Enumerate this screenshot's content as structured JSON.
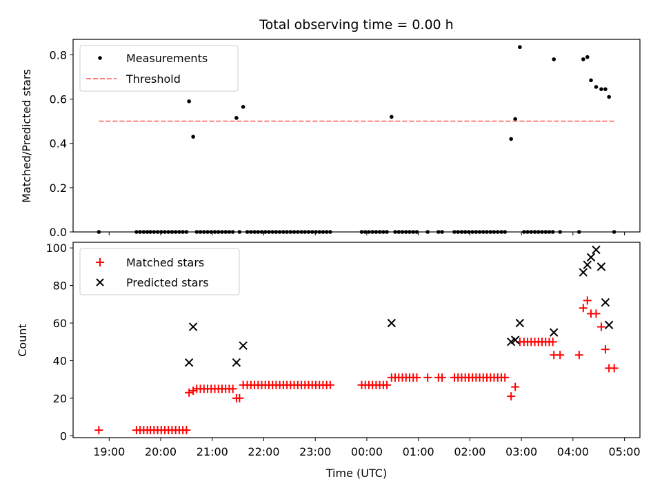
{
  "chart_data": [
    {
      "type": "scatter",
      "title": "Total observing time = 0.00 h",
      "ylabel": "Matched/Predicted stars",
      "xlabel": "",
      "ylim": [
        0,
        0.87
      ],
      "yticks": [
        0.0,
        0.2,
        0.4,
        0.6,
        0.8
      ],
      "ytick_labels": [
        "0.0",
        "0.2",
        "0.4",
        "0.6",
        "0.8"
      ],
      "xaxis_unit": "hours since 00:00 UTC",
      "xlim": [
        -5.7,
        5.3
      ],
      "legend_position": "top-left",
      "series": [
        {
          "name": "Measurements",
          "style": "dot",
          "color": "#000000",
          "points": [
            [
              -5.2,
              0
            ],
            [
              -4.47,
              0
            ],
            [
              -4.4,
              0
            ],
            [
              -4.33,
              0
            ],
            [
              -4.26,
              0
            ],
            [
              -4.2,
              0
            ],
            [
              -4.13,
              0
            ],
            [
              -4.06,
              0
            ],
            [
              -3.99,
              0
            ],
            [
              -3.92,
              0
            ],
            [
              -3.85,
              0
            ],
            [
              -3.78,
              0
            ],
            [
              -3.71,
              0
            ],
            [
              -3.64,
              0
            ],
            [
              -3.57,
              0
            ],
            [
              -3.5,
              0
            ],
            [
              -3.45,
              0.59
            ],
            [
              -3.37,
              0.43
            ],
            [
              -3.3,
              0
            ],
            [
              -3.23,
              0
            ],
            [
              -3.16,
              0
            ],
            [
              -3.09,
              0
            ],
            [
              -3.02,
              0
            ],
            [
              -2.95,
              0
            ],
            [
              -2.88,
              0
            ],
            [
              -2.81,
              0
            ],
            [
              -2.74,
              0
            ],
            [
              -2.67,
              0
            ],
            [
              -2.6,
              0
            ],
            [
              -2.53,
              0.515
            ],
            [
              -2.47,
              0
            ],
            [
              -2.4,
              0.565
            ],
            [
              -2.32,
              0
            ],
            [
              -2.25,
              0
            ],
            [
              -2.18,
              0
            ],
            [
              -2.11,
              0
            ],
            [
              -2.04,
              0
            ],
            [
              -1.97,
              0
            ],
            [
              -1.9,
              0
            ],
            [
              -1.83,
              0
            ],
            [
              -1.76,
              0
            ],
            [
              -1.69,
              0
            ],
            [
              -1.62,
              0
            ],
            [
              -1.55,
              0
            ],
            [
              -1.48,
              0
            ],
            [
              -1.41,
              0
            ],
            [
              -1.34,
              0
            ],
            [
              -1.27,
              0
            ],
            [
              -1.2,
              0
            ],
            [
              -1.13,
              0
            ],
            [
              -1.06,
              0
            ],
            [
              -0.99,
              0
            ],
            [
              -0.92,
              0
            ],
            [
              -0.85,
              0
            ],
            [
              -0.78,
              0
            ],
            [
              -0.71,
              0
            ],
            [
              -0.1,
              0
            ],
            [
              -0.03,
              0
            ],
            [
              0.04,
              0
            ],
            [
              0.11,
              0
            ],
            [
              0.18,
              0
            ],
            [
              0.25,
              0
            ],
            [
              0.32,
              0
            ],
            [
              0.39,
              0
            ],
            [
              0.48,
              0.52
            ],
            [
              0.55,
              0
            ],
            [
              0.62,
              0
            ],
            [
              0.69,
              0
            ],
            [
              0.76,
              0
            ],
            [
              0.83,
              0
            ],
            [
              0.9,
              0
            ],
            [
              0.97,
              0
            ],
            [
              1.18,
              0
            ],
            [
              1.39,
              0
            ],
            [
              1.46,
              0
            ],
            [
              1.7,
              0
            ],
            [
              1.77,
              0
            ],
            [
              1.84,
              0
            ],
            [
              1.91,
              0
            ],
            [
              1.98,
              0
            ],
            [
              2.05,
              0
            ],
            [
              2.12,
              0
            ],
            [
              2.19,
              0
            ],
            [
              2.26,
              0
            ],
            [
              2.33,
              0
            ],
            [
              2.4,
              0
            ],
            [
              2.47,
              0
            ],
            [
              2.54,
              0
            ],
            [
              2.61,
              0
            ],
            [
              2.68,
              0
            ],
            [
              2.8,
              0.42
            ],
            [
              2.88,
              0.51
            ],
            [
              2.97,
              0.835
            ],
            [
              3.05,
              0
            ],
            [
              3.12,
              0
            ],
            [
              3.19,
              0
            ],
            [
              3.26,
              0
            ],
            [
              3.33,
              0
            ],
            [
              3.4,
              0
            ],
            [
              3.47,
              0
            ],
            [
              3.54,
              0
            ],
            [
              3.61,
              0
            ],
            [
              3.63,
              0.78
            ],
            [
              3.75,
              0
            ],
            [
              4.12,
              0
            ],
            [
              4.2,
              0.78
            ],
            [
              4.28,
              0.79
            ],
            [
              4.35,
              0.685
            ],
            [
              4.45,
              0.655
            ],
            [
              4.55,
              0.645
            ],
            [
              4.63,
              0.645
            ],
            [
              4.7,
              0.61
            ],
            [
              4.8,
              0
            ]
          ]
        },
        {
          "name": "Threshold",
          "style": "dashed-line",
          "color": "#ff7f7f",
          "points": [
            [
              -5.2,
              0.5
            ],
            [
              4.8,
              0.5
            ]
          ]
        }
      ]
    },
    {
      "type": "scatter",
      "title": "",
      "ylabel": "Count",
      "xlabel": "Time (UTC)",
      "ylim": [
        -1,
        103
      ],
      "yticks": [
        0,
        20,
        40,
        60,
        80,
        100
      ],
      "ytick_labels": [
        "0",
        "20",
        "40",
        "60",
        "80",
        "100"
      ],
      "xaxis_unit": "hours since 00:00 UTC",
      "xlim": [
        -5.7,
        5.3
      ],
      "xticks": [
        -5,
        -4,
        -3,
        -2,
        -1,
        0,
        1,
        2,
        3,
        4,
        5
      ],
      "xtick_labels": [
        "19:00",
        "20:00",
        "21:00",
        "22:00",
        "23:00",
        "00:00",
        "01:00",
        "02:00",
        "03:00",
        "04:00",
        "05:00"
      ],
      "legend_position": "top-left",
      "series": [
        {
          "name": "Matched stars",
          "style": "plus",
          "color": "#ff0000",
          "points": [
            [
              -5.2,
              3
            ],
            [
              -4.47,
              3
            ],
            [
              -4.4,
              3
            ],
            [
              -4.33,
              3
            ],
            [
              -4.26,
              3
            ],
            [
              -4.2,
              3
            ],
            [
              -4.13,
              3
            ],
            [
              -4.06,
              3
            ],
            [
              -3.99,
              3
            ],
            [
              -3.92,
              3
            ],
            [
              -3.85,
              3
            ],
            [
              -3.78,
              3
            ],
            [
              -3.71,
              3
            ],
            [
              -3.64,
              3
            ],
            [
              -3.57,
              3
            ],
            [
              -3.5,
              3
            ],
            [
              -3.45,
              23
            ],
            [
              -3.37,
              24
            ],
            [
              -3.3,
              25
            ],
            [
              -3.23,
              25
            ],
            [
              -3.16,
              25
            ],
            [
              -3.09,
              25
            ],
            [
              -3.02,
              25
            ],
            [
              -2.95,
              25
            ],
            [
              -2.88,
              25
            ],
            [
              -2.81,
              25
            ],
            [
              -2.74,
              25
            ],
            [
              -2.67,
              25
            ],
            [
              -2.6,
              25
            ],
            [
              -2.53,
              20
            ],
            [
              -2.47,
              20
            ],
            [
              -2.4,
              27
            ],
            [
              -2.32,
              27
            ],
            [
              -2.25,
              27
            ],
            [
              -2.18,
              27
            ],
            [
              -2.11,
              27
            ],
            [
              -2.04,
              27
            ],
            [
              -1.97,
              27
            ],
            [
              -1.9,
              27
            ],
            [
              -1.83,
              27
            ],
            [
              -1.76,
              27
            ],
            [
              -1.69,
              27
            ],
            [
              -1.62,
              27
            ],
            [
              -1.55,
              27
            ],
            [
              -1.48,
              27
            ],
            [
              -1.41,
              27
            ],
            [
              -1.34,
              27
            ],
            [
              -1.27,
              27
            ],
            [
              -1.2,
              27
            ],
            [
              -1.13,
              27
            ],
            [
              -1.06,
              27
            ],
            [
              -0.99,
              27
            ],
            [
              -0.92,
              27
            ],
            [
              -0.85,
              27
            ],
            [
              -0.78,
              27
            ],
            [
              -0.71,
              27
            ],
            [
              -0.1,
              27
            ],
            [
              -0.03,
              27
            ],
            [
              0.04,
              27
            ],
            [
              0.11,
              27
            ],
            [
              0.18,
              27
            ],
            [
              0.25,
              27
            ],
            [
              0.32,
              27
            ],
            [
              0.39,
              27
            ],
            [
              0.48,
              31
            ],
            [
              0.55,
              31
            ],
            [
              0.62,
              31
            ],
            [
              0.69,
              31
            ],
            [
              0.76,
              31
            ],
            [
              0.83,
              31
            ],
            [
              0.9,
              31
            ],
            [
              0.97,
              31
            ],
            [
              1.18,
              31
            ],
            [
              1.39,
              31
            ],
            [
              1.46,
              31
            ],
            [
              1.7,
              31
            ],
            [
              1.77,
              31
            ],
            [
              1.84,
              31
            ],
            [
              1.91,
              31
            ],
            [
              1.98,
              31
            ],
            [
              2.05,
              31
            ],
            [
              2.12,
              31
            ],
            [
              2.19,
              31
            ],
            [
              2.26,
              31
            ],
            [
              2.33,
              31
            ],
            [
              2.4,
              31
            ],
            [
              2.47,
              31
            ],
            [
              2.54,
              31
            ],
            [
              2.61,
              31
            ],
            [
              2.68,
              31
            ],
            [
              2.8,
              21
            ],
            [
              2.88,
              26
            ],
            [
              2.97,
              50
            ],
            [
              3.05,
              50
            ],
            [
              3.12,
              50
            ],
            [
              3.19,
              50
            ],
            [
              3.26,
              50
            ],
            [
              3.33,
              50
            ],
            [
              3.4,
              50
            ],
            [
              3.47,
              50
            ],
            [
              3.54,
              50
            ],
            [
              3.61,
              50
            ],
            [
              3.63,
              43
            ],
            [
              3.75,
              43
            ],
            [
              4.12,
              43
            ],
            [
              4.2,
              68
            ],
            [
              4.28,
              72
            ],
            [
              4.35,
              65
            ],
            [
              4.45,
              65
            ],
            [
              4.55,
              58
            ],
            [
              4.63,
              46
            ],
            [
              4.7,
              36
            ],
            [
              4.8,
              36
            ]
          ]
        },
        {
          "name": "Predicted stars",
          "style": "x",
          "color": "#000000",
          "points": [
            [
              -3.45,
              39
            ],
            [
              -3.37,
              58
            ],
            [
              -2.53,
              39
            ],
            [
              -2.4,
              48
            ],
            [
              0.48,
              60
            ],
            [
              2.8,
              50
            ],
            [
              2.88,
              51
            ],
            [
              2.97,
              60
            ],
            [
              3.63,
              55
            ],
            [
              4.2,
              87
            ],
            [
              4.28,
              91
            ],
            [
              4.35,
              95
            ],
            [
              4.45,
              99
            ],
            [
              4.55,
              90
            ],
            [
              4.63,
              71
            ],
            [
              4.7,
              59
            ]
          ]
        }
      ]
    }
  ]
}
